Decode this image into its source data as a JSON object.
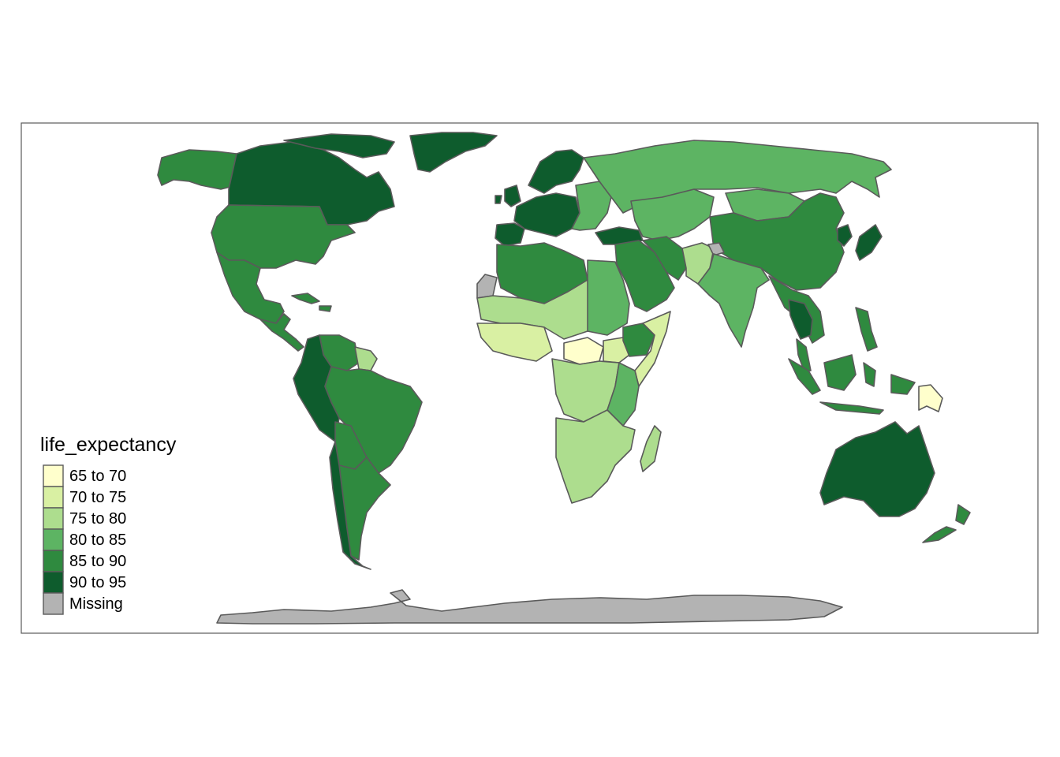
{
  "map": {
    "variable": "life_expectancy",
    "projection": "world map",
    "missing_color": "#b3b3b3",
    "border_color": "#5a5a5a",
    "frame": true
  },
  "legend": {
    "title": "life_expectancy",
    "placement": "bottom-left",
    "entries": [
      {
        "label": "65 to 70",
        "color": "#ffffcc"
      },
      {
        "label": "70 to 75",
        "color": "#d9f0a3"
      },
      {
        "label": "75 to 80",
        "color": "#addd8e"
      },
      {
        "label": "80 to 85",
        "color": "#5db463"
      },
      {
        "label": "85 to 90",
        "color": "#2f8a3f"
      },
      {
        "label": "90 to 95",
        "color": "#0e5c2d"
      },
      {
        "label": "Missing",
        "color": "#b3b3b3"
      }
    ]
  },
  "regions": [
    {
      "name": "Canada",
      "class": "90 to 95"
    },
    {
      "name": "Alaska",
      "class": "85 to 90"
    },
    {
      "name": "Greenland",
      "class": "90 to 95"
    },
    {
      "name": "United States",
      "class": "85 to 90"
    },
    {
      "name": "Mexico",
      "class": "85 to 90"
    },
    {
      "name": "Central America",
      "class": "85 to 90"
    },
    {
      "name": "Caribbean",
      "class": "85 to 90"
    },
    {
      "name": "Colombia & Ecuador & Peru",
      "class": "90 to 95"
    },
    {
      "name": "Venezuela",
      "class": "85 to 90"
    },
    {
      "name": "Guianas",
      "class": "75 to 80"
    },
    {
      "name": "Brazil",
      "class": "85 to 90"
    },
    {
      "name": "Bolivia & Paraguay",
      "class": "85 to 90"
    },
    {
      "name": "Argentina",
      "class": "85 to 90"
    },
    {
      "name": "Chile",
      "class": "90 to 95"
    },
    {
      "name": "Western Europe",
      "class": "90 to 95"
    },
    {
      "name": "Scandinavia",
      "class": "90 to 95"
    },
    {
      "name": "Eastern Europe",
      "class": "80 to 85"
    },
    {
      "name": "Iberia",
      "class": "90 to 95"
    },
    {
      "name": "Turkey",
      "class": "90 to 95"
    },
    {
      "name": "Russia",
      "class": "80 to 85"
    },
    {
      "name": "Kazakhstan & Central Asia",
      "class": "80 to 85"
    },
    {
      "name": "Mongolia",
      "class": "80 to 85"
    },
    {
      "name": "China",
      "class": "85 to 90"
    },
    {
      "name": "Japan",
      "class": "90 to 95"
    },
    {
      "name": "Korea",
      "class": "90 to 95"
    },
    {
      "name": "Middle East",
      "class": "85 to 90"
    },
    {
      "name": "Iran",
      "class": "85 to 90"
    },
    {
      "name": "Afghanistan & Pakistan",
      "class": "75 to 80"
    },
    {
      "name": "India",
      "class": "80 to 85"
    },
    {
      "name": "Kashmir",
      "class": "Missing"
    },
    {
      "name": "Southeast Asia",
      "class": "85 to 90"
    },
    {
      "name": "Thailand & Cambodia",
      "class": "90 to 95"
    },
    {
      "name": "Indonesia",
      "class": "85 to 90"
    },
    {
      "name": "Philippines",
      "class": "85 to 90"
    },
    {
      "name": "Papua New Guinea",
      "class": "65 to 70"
    },
    {
      "name": "Australia",
      "class": "90 to 95"
    },
    {
      "name": "New Zealand",
      "class": "85 to 90"
    },
    {
      "name": "North Africa",
      "class": "85 to 90"
    },
    {
      "name": "Western Sahara",
      "class": "Missing"
    },
    {
      "name": "Sahel",
      "class": "75 to 80"
    },
    {
      "name": "Egypt & Sudan",
      "class": "80 to 85"
    },
    {
      "name": "West Africa",
      "class": "70 to 75"
    },
    {
      "name": "Central African Republic",
      "class": "65 to 70"
    },
    {
      "name": "South Sudan",
      "class": "70 to 75"
    },
    {
      "name": "Ethiopia",
      "class": "85 to 90"
    },
    {
      "name": "Somalia",
      "class": "70 to 75"
    },
    {
      "name": "East Africa",
      "class": "80 to 85"
    },
    {
      "name": "Central Africa",
      "class": "75 to 80"
    },
    {
      "name": "Southern Africa",
      "class": "75 to 80"
    },
    {
      "name": "Madagascar",
      "class": "75 to 80"
    },
    {
      "name": "Antarctica",
      "class": "Missing"
    }
  ]
}
